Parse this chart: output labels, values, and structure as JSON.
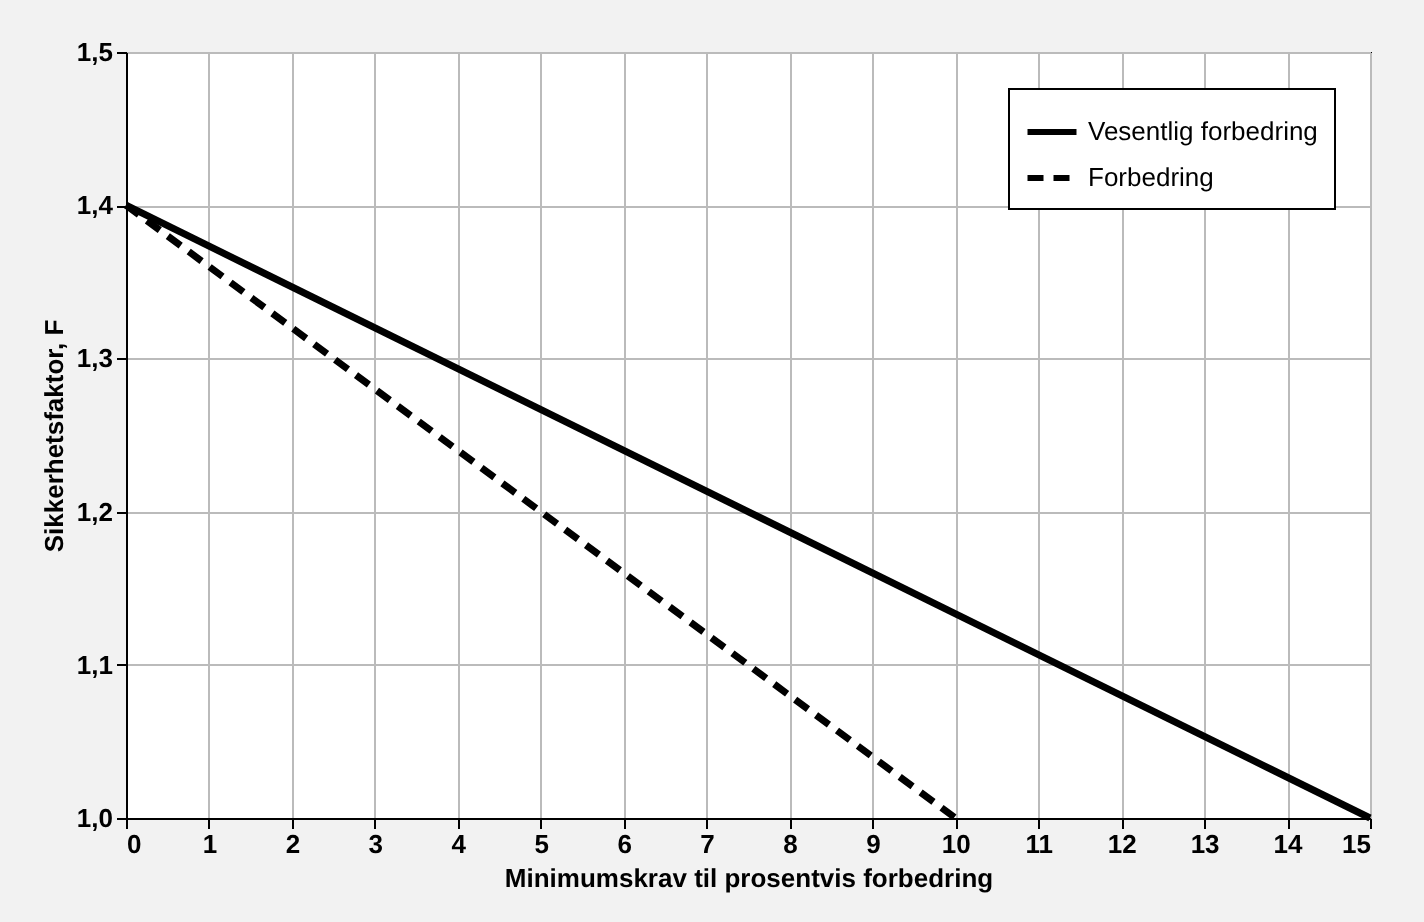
{
  "chart_data": {
    "type": "line",
    "xlabel": "Minimumskrav til prosentvis forbedring",
    "ylabel": "Sikkerhetsfaktor, F",
    "xlim": [
      0,
      15
    ],
    "xticks": [
      0,
      1,
      2,
      3,
      4,
      5,
      6,
      7,
      8,
      9,
      10,
      11,
      12,
      13,
      14,
      15
    ],
    "ylim": [
      1.0,
      1.5
    ],
    "yticks": [
      {
        "value": 1.0,
        "label": "1,0"
      },
      {
        "value": 1.1,
        "label": "1,1"
      },
      {
        "value": 1.2,
        "label": "1,2"
      },
      {
        "value": 1.3,
        "label": "1,3"
      },
      {
        "value": 1.4,
        "label": "1,4"
      },
      {
        "value": 1.5,
        "label": "1,5"
      }
    ],
    "grid": true,
    "legend": "top right",
    "marker": "none",
    "series": [
      {
        "name": "Vesentlig forbedring",
        "color": "#000000",
        "line_style": "solid",
        "x": [
          0,
          15
        ],
        "values": [
          1.4,
          1.0
        ]
      },
      {
        "name": "Forbedring",
        "color": "#000000",
        "line_style": "dashed",
        "x": [
          0,
          10
        ],
        "values": [
          1.4,
          1.0
        ]
      }
    ]
  }
}
